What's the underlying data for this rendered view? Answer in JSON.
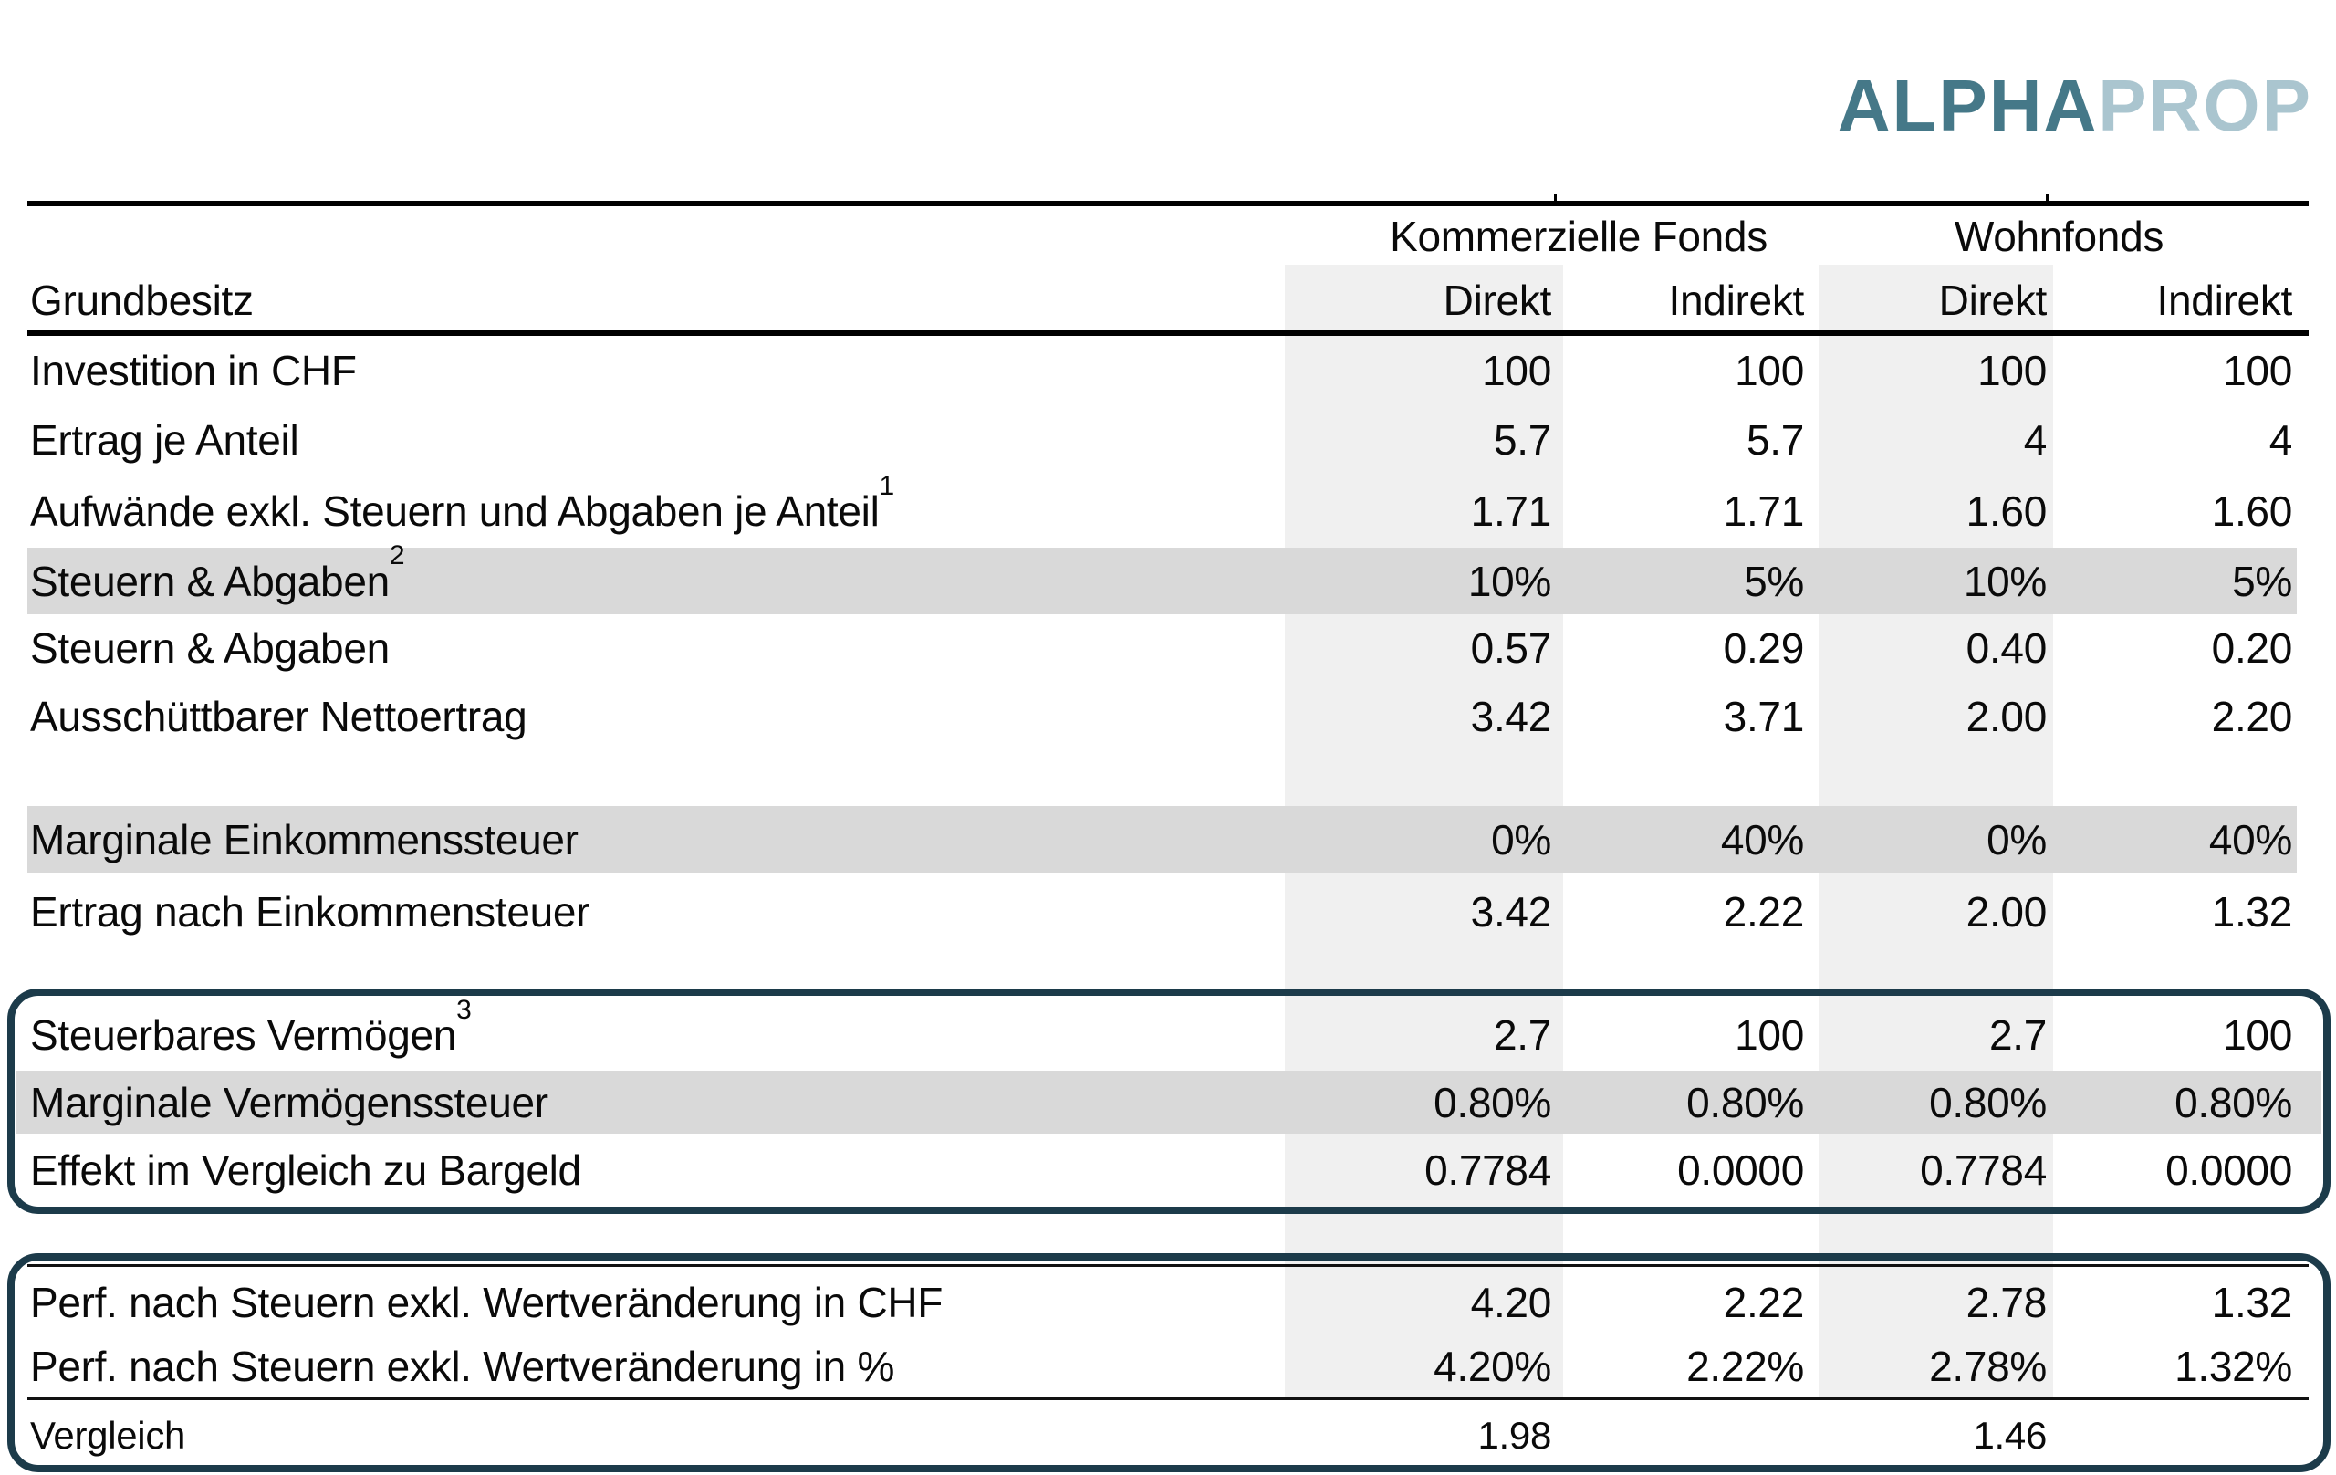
{
  "logo": {
    "alpha": "ALPHA",
    "prop": "PROP",
    "alpha_color": "#457888",
    "prop_color": "#aac5cf"
  },
  "table": {
    "group_headers": [
      "Kommerzielle Fonds",
      "Wohnfonds"
    ],
    "row_header_label": "Grundbesitz",
    "col_headers": [
      "Direkt",
      "Indirekt",
      "Direkt",
      "Indirekt"
    ],
    "rows": [
      {
        "label": "Investition in CHF",
        "values": [
          "100",
          "100",
          "100",
          "100"
        ]
      },
      {
        "label": "Ertrag je Anteil",
        "values": [
          "5.7",
          "5.7",
          "4",
          "4"
        ]
      },
      {
        "label": "Aufwände exkl. Steuern und Abgaben je Anteil",
        "sup": "1",
        "values": [
          "1.71",
          "1.71",
          "1.60",
          "1.60"
        ]
      },
      {
        "label": "Steuern & Abgaben",
        "sup": "2",
        "values": [
          "10%",
          "5%",
          "10%",
          "5%"
        ],
        "highlighted": true
      },
      {
        "label": "Steuern & Abgaben",
        "values": [
          "0.57",
          "0.29",
          "0.40",
          "0.20"
        ]
      },
      {
        "label": "Ausschüttbarer Nettoertrag",
        "values": [
          "3.42",
          "3.71",
          "2.00",
          "2.20"
        ]
      },
      {
        "label": "Marginale Einkommenssteuer",
        "values": [
          "0%",
          "40%",
          "0%",
          "40%"
        ],
        "highlighted": true
      },
      {
        "label": "Ertrag nach Einkommensteuer",
        "values": [
          "3.42",
          "2.22",
          "2.00",
          "1.32"
        ]
      },
      {
        "label": "Steuerbares Vermögen",
        "sup": "3",
        "values": [
          "2.7",
          "100",
          "2.7",
          "100"
        ]
      },
      {
        "label": "Marginale Vermögenssteuer",
        "values": [
          "0.80%",
          "0.80%",
          "0.80%",
          "0.80%"
        ],
        "highlighted": true
      },
      {
        "label": "Effekt im Vergleich zu Bargeld",
        "values": [
          "0.7784",
          "0.0000",
          "0.7784",
          "0.0000"
        ]
      },
      {
        "label": "Perf. nach Steuern exkl. Wertveränderung in CHF",
        "values": [
          "4.20",
          "2.22",
          "2.78",
          "1.32"
        ]
      },
      {
        "label": "Perf. nach Steuern exkl. Wertveränderung in %",
        "values": [
          "4.20%",
          "2.22%",
          "2.78%",
          "1.32%"
        ]
      }
    ],
    "comparison_row": {
      "label": "Vergleich",
      "values": [
        "1.98",
        "1.46"
      ]
    },
    "colors": {
      "highlight_row": "#d9d9d9",
      "column_band": "#f0f0f0",
      "frame_border": "#1c3b4a"
    }
  }
}
